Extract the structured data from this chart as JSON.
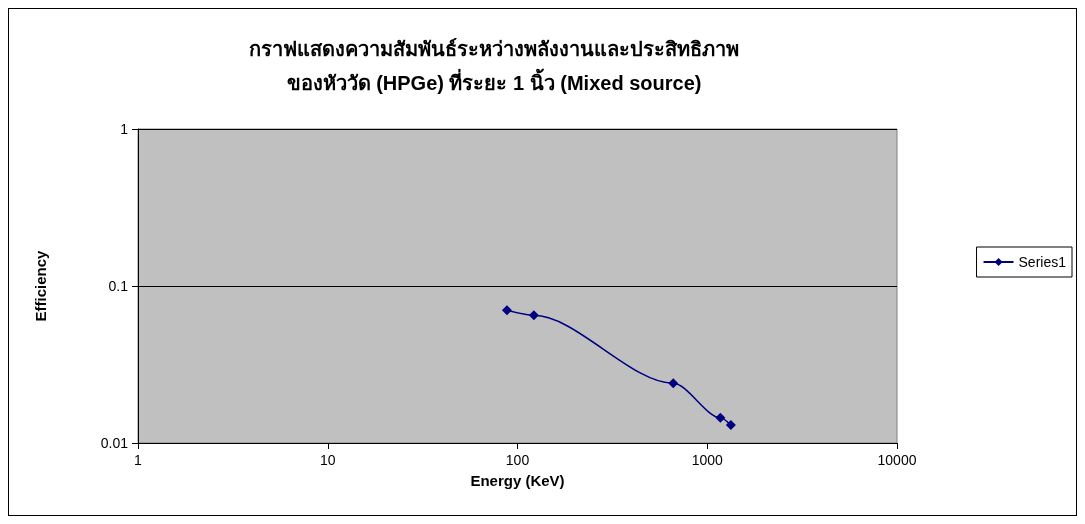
{
  "chart_data": {
    "type": "line",
    "title": "กราฟแสดงความสัมพันธ์ระหว่างพลังงานและประสิทธิภาพ\nของหัววัด (HPGe) ที่ระยะ 1 นิ้ว (Mixed source)",
    "xlabel": "Energy (KeV)",
    "ylabel": "Efficiency",
    "series": [
      {
        "name": "Series1",
        "color": "#000080",
        "x": [
          88,
          122,
          662,
          1173,
          1332
        ],
        "values": [
          0.07,
          0.065,
          0.024,
          0.0145,
          0.013
        ]
      }
    ],
    "log": "xy",
    "xlim": [
      1,
      10000
    ],
    "xticks": [
      1,
      10,
      100,
      1000,
      10000
    ],
    "ylim": [
      0.01,
      1
    ],
    "yticks": [
      0.01,
      0.1,
      1
    ],
    "grid": "y",
    "legend": "right",
    "marker": "diamond",
    "line_style": "solid"
  }
}
